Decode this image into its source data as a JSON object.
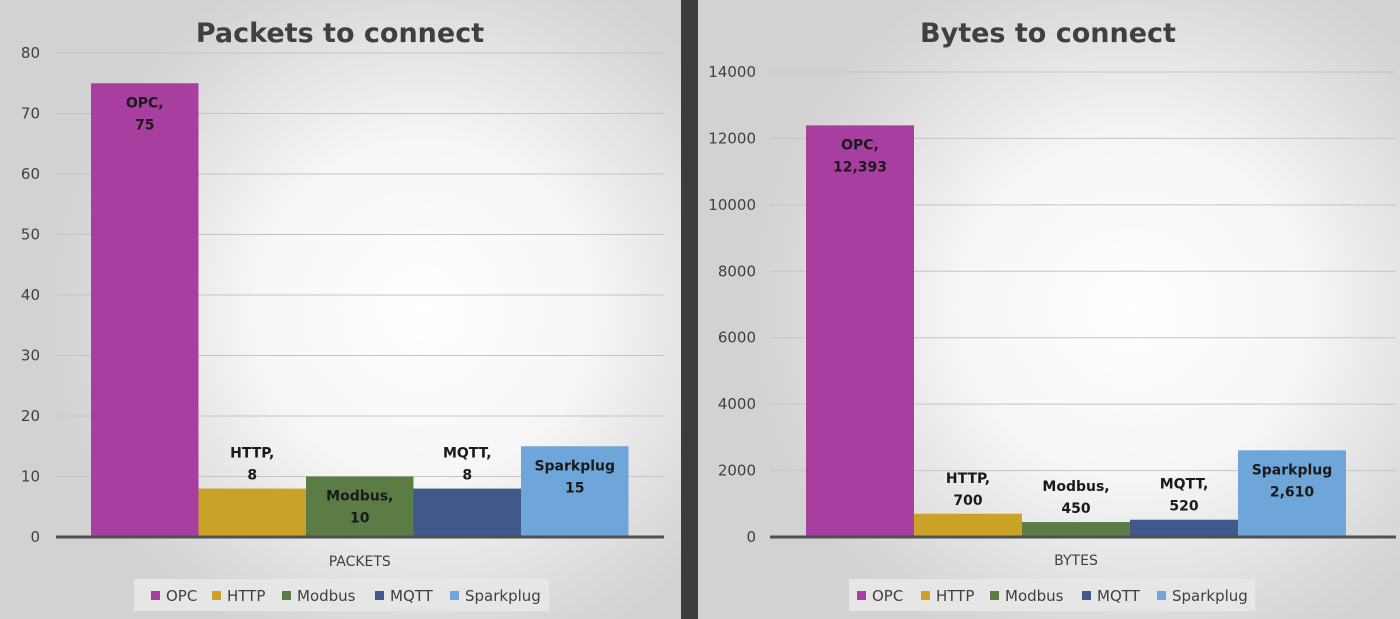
{
  "chart_data": [
    {
      "type": "bar",
      "title": "Packets to connect",
      "categories": [
        "PACKETS"
      ],
      "series": [
        {
          "name": "OPC",
          "values": [
            75
          ],
          "color": "#a83fa0",
          "label": [
            "OPC,",
            "75"
          ]
        },
        {
          "name": "HTTP",
          "values": [
            8
          ],
          "color": "#c9a227",
          "label": [
            "HTTP,",
            "8"
          ]
        },
        {
          "name": "Modbus",
          "values": [
            10
          ],
          "color": "#5b7d45",
          "label": [
            "Modbus,",
            "10"
          ]
        },
        {
          "name": "MQTT",
          "values": [
            8
          ],
          "color": "#40598a",
          "label": [
            "MQTT,",
            "8"
          ]
        },
        {
          "name": "Sparkplug",
          "values": [
            15
          ],
          "color": "#6fa6d9",
          "label": [
            "Sparkplug",
            "15"
          ]
        }
      ],
      "ylim": [
        0,
        80
      ],
      "yticks": [
        "0",
        "10",
        "20",
        "30",
        "40",
        "50",
        "60",
        "70",
        "80"
      ],
      "grid": true,
      "legend": "bottom"
    },
    {
      "type": "bar",
      "title": "Bytes to connect",
      "categories": [
        "BYTES"
      ],
      "series": [
        {
          "name": "OPC",
          "values": [
            12393
          ],
          "color": "#a83fa0",
          "label": [
            "OPC,",
            "12,393"
          ]
        },
        {
          "name": "HTTP",
          "values": [
            700
          ],
          "color": "#c9a227",
          "label": [
            "HTTP,",
            "700"
          ]
        },
        {
          "name": "Modbus",
          "values": [
            450
          ],
          "color": "#5b7d45",
          "label": [
            "Modbus,",
            "450"
          ]
        },
        {
          "name": "MQTT",
          "values": [
            520
          ],
          "color": "#40598a",
          "label": [
            "MQTT,",
            "520"
          ]
        },
        {
          "name": "Sparkplug",
          "values": [
            2610
          ],
          "color": "#6fa6d9",
          "label": [
            "Sparkplug",
            "2,610"
          ]
        }
      ],
      "ylim": [
        0,
        14000
      ],
      "yticks": [
        "0",
        "2000",
        "4000",
        "6000",
        "8000",
        "10000",
        "12000",
        "14000"
      ],
      "grid": true,
      "legend": "bottom"
    }
  ]
}
